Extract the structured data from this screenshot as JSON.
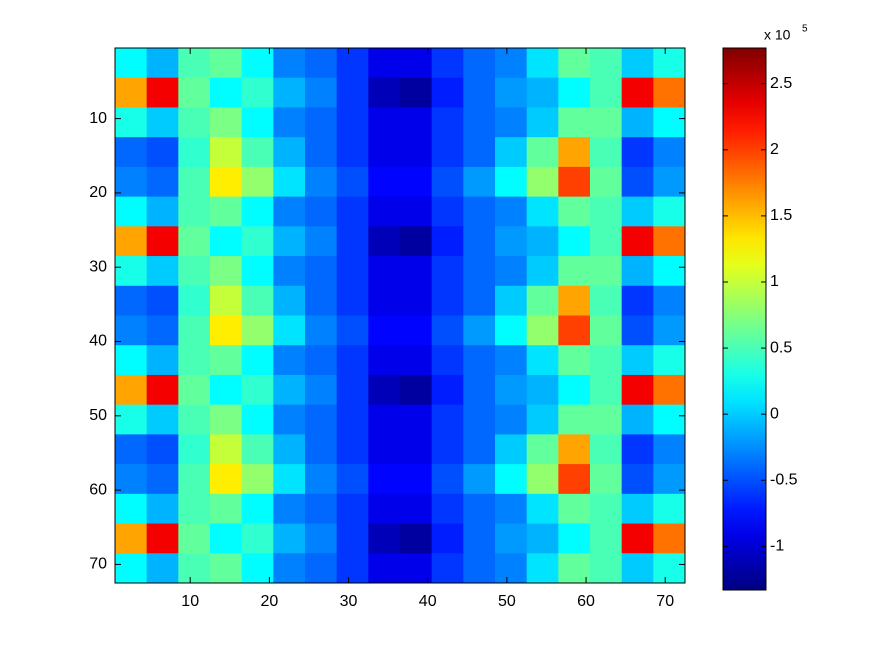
{
  "chart_data": {
    "type": "heatmap",
    "x": [
      2.5,
      6.5,
      10.5,
      14.5,
      18.5,
      22.5,
      26.5,
      30.5,
      34.5,
      38.5,
      42.5,
      46.5,
      50.5,
      54.5,
      58.5,
      62.5,
      66.5,
      70.5
    ],
    "y": [
      2.5,
      6.5,
      10.5,
      14.5,
      18.5,
      22.5,
      26.5,
      30.5,
      34.5,
      38.5,
      42.5,
      46.5,
      50.5,
      54.5,
      58.5,
      62.5,
      66.5,
      70.5
    ],
    "z": [
      [
        0.2,
        -0.1,
        0.5,
        0.6,
        0.2,
        -0.3,
        -0.4,
        -0.6,
        -0.9,
        -0.9,
        -0.6,
        -0.4,
        -0.3,
        0.1,
        0.6,
        0.5,
        0.0,
        0.3
      ],
      [
        1.6,
        2.3,
        0.6,
        0.2,
        0.4,
        -0.1,
        -0.3,
        -0.6,
        -1.1,
        -1.2,
        -0.7,
        -0.4,
        -0.2,
        -0.1,
        0.2,
        0.5,
        2.3,
        1.8
      ],
      [
        0.3,
        0.0,
        0.5,
        0.7,
        0.2,
        -0.3,
        -0.4,
        -0.6,
        -0.9,
        -0.9,
        -0.6,
        -0.4,
        -0.3,
        0.0,
        0.6,
        0.6,
        -0.1,
        0.2
      ],
      [
        -0.4,
        -0.5,
        0.4,
        1.0,
        0.5,
        -0.1,
        -0.4,
        -0.6,
        -0.9,
        -0.9,
        -0.6,
        -0.4,
        0.0,
        0.6,
        1.6,
        0.5,
        -0.6,
        -0.3
      ],
      [
        -0.3,
        -0.4,
        0.5,
        1.3,
        0.8,
        0.1,
        -0.3,
        -0.5,
        -0.8,
        -0.8,
        -0.5,
        -0.2,
        0.2,
        0.8,
        2.0,
        0.6,
        -0.5,
        -0.2
      ],
      [
        0.2,
        -0.1,
        0.5,
        0.6,
        0.2,
        -0.3,
        -0.4,
        -0.6,
        -0.9,
        -0.9,
        -0.6,
        -0.4,
        -0.3,
        0.1,
        0.6,
        0.5,
        0.0,
        0.3
      ],
      [
        1.6,
        2.3,
        0.6,
        0.2,
        0.4,
        -0.1,
        -0.3,
        -0.6,
        -1.1,
        -1.2,
        -0.7,
        -0.4,
        -0.2,
        -0.1,
        0.2,
        0.5,
        2.3,
        1.8
      ],
      [
        0.3,
        0.0,
        0.5,
        0.7,
        0.2,
        -0.3,
        -0.4,
        -0.6,
        -0.9,
        -0.9,
        -0.6,
        -0.4,
        -0.3,
        0.0,
        0.6,
        0.6,
        -0.1,
        0.2
      ],
      [
        -0.4,
        -0.5,
        0.4,
        1.0,
        0.5,
        -0.1,
        -0.4,
        -0.6,
        -0.9,
        -0.9,
        -0.6,
        -0.4,
        0.0,
        0.6,
        1.6,
        0.5,
        -0.6,
        -0.3
      ],
      [
        -0.3,
        -0.4,
        0.5,
        1.3,
        0.8,
        0.1,
        -0.3,
        -0.5,
        -0.8,
        -0.8,
        -0.5,
        -0.2,
        0.2,
        0.8,
        2.0,
        0.6,
        -0.5,
        -0.2
      ],
      [
        0.2,
        -0.1,
        0.5,
        0.6,
        0.2,
        -0.3,
        -0.4,
        -0.6,
        -0.9,
        -0.9,
        -0.6,
        -0.4,
        -0.3,
        0.1,
        0.6,
        0.5,
        0.0,
        0.3
      ],
      [
        1.6,
        2.3,
        0.6,
        0.2,
        0.4,
        -0.1,
        -0.3,
        -0.6,
        -1.1,
        -1.2,
        -0.7,
        -0.4,
        -0.2,
        -0.1,
        0.2,
        0.5,
        2.3,
        1.8
      ],
      [
        0.3,
        0.0,
        0.5,
        0.7,
        0.2,
        -0.3,
        -0.4,
        -0.6,
        -0.9,
        -0.9,
        -0.6,
        -0.4,
        -0.3,
        0.0,
        0.6,
        0.6,
        -0.1,
        0.2
      ],
      [
        -0.4,
        -0.5,
        0.4,
        1.0,
        0.5,
        -0.1,
        -0.4,
        -0.6,
        -0.9,
        -0.9,
        -0.6,
        -0.4,
        0.0,
        0.6,
        1.6,
        0.5,
        -0.6,
        -0.3
      ],
      [
        -0.3,
        -0.4,
        0.5,
        1.3,
        0.8,
        0.1,
        -0.3,
        -0.5,
        -0.8,
        -0.8,
        -0.5,
        -0.2,
        0.2,
        0.8,
        2.0,
        0.6,
        -0.5,
        -0.2
      ],
      [
        0.2,
        -0.1,
        0.5,
        0.6,
        0.2,
        -0.3,
        -0.4,
        -0.6,
        -0.9,
        -0.9,
        -0.6,
        -0.4,
        -0.3,
        0.1,
        0.6,
        0.5,
        0.0,
        0.3
      ],
      [
        1.6,
        2.3,
        0.6,
        0.2,
        0.4,
        -0.1,
        -0.3,
        -0.6,
        -1.1,
        -1.2,
        -0.7,
        -0.4,
        -0.2,
        -0.1,
        0.2,
        0.5,
        2.3,
        1.8
      ],
      [
        0.2,
        -0.1,
        0.5,
        0.6,
        0.2,
        -0.3,
        -0.4,
        -0.6,
        -0.9,
        -0.9,
        -0.6,
        -0.4,
        -0.3,
        0.1,
        0.6,
        0.5,
        0.0,
        0.3
      ]
    ],
    "xlim": [
      0.5,
      72.5
    ],
    "ylim": [
      0.5,
      72.5
    ],
    "xticks": [
      10,
      20,
      30,
      40,
      50,
      60,
      70
    ],
    "yticks": [
      10,
      20,
      30,
      40,
      50,
      60,
      70
    ],
    "colormap": "jet",
    "clim": [
      -1.33,
      2.77
    ],
    "cticks": [
      -1,
      -0.5,
      0,
      0.5,
      1,
      1.5,
      2,
      2.5
    ],
    "colorbar_multiplier": "x 10",
    "colorbar_exponent": 5
  }
}
